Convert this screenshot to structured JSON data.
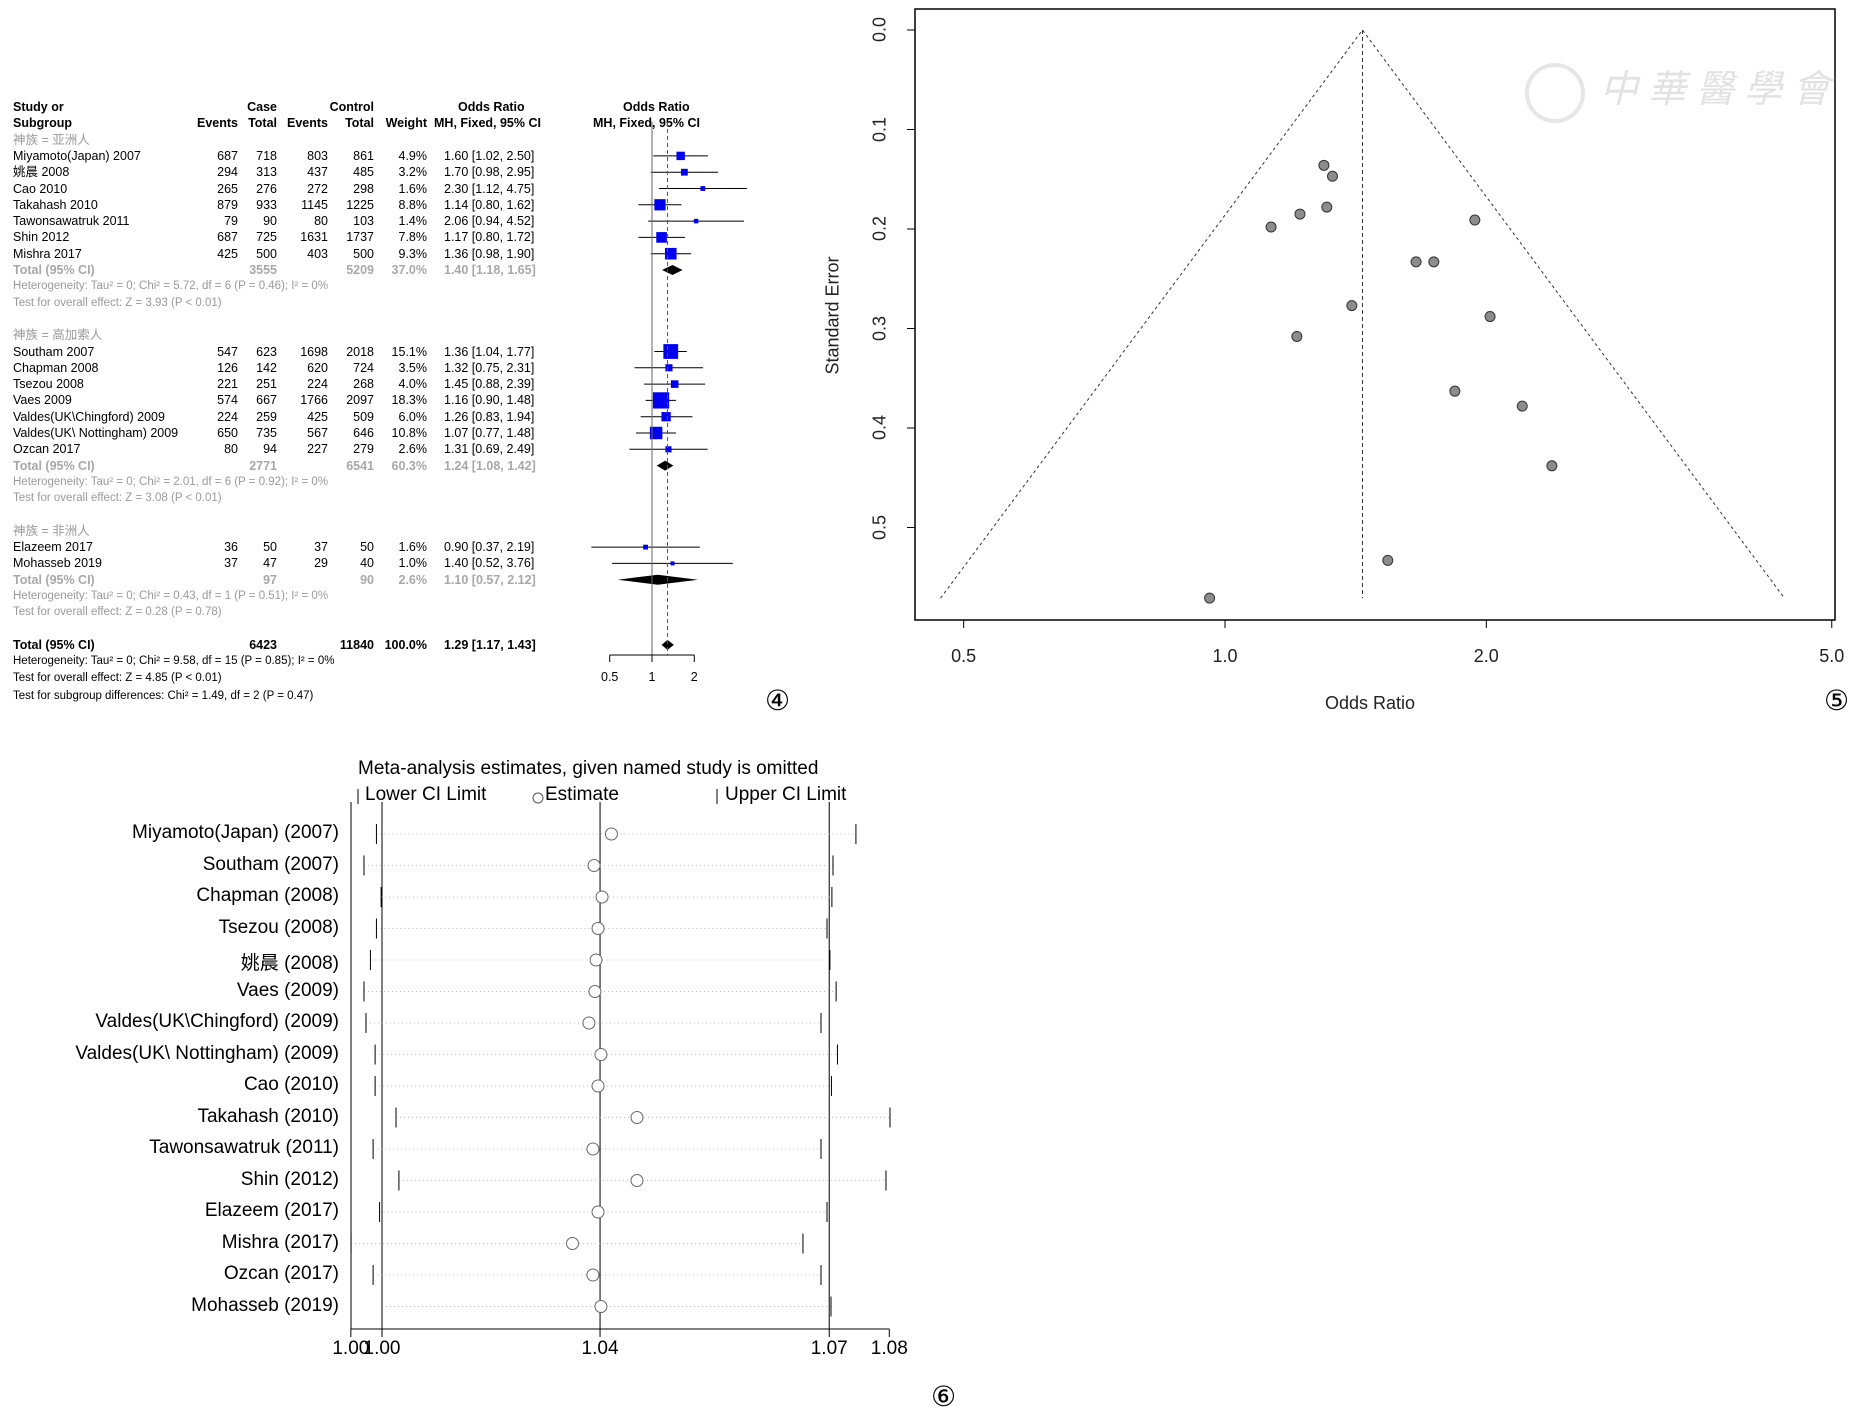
{
  "panels": {
    "p4": "④",
    "p5": "⑤",
    "p6": "⑥"
  },
  "chart_data": [
    {
      "type": "forest",
      "header": {
        "study_line1": "Study or",
        "study_line2": "Subgroup",
        "case": "Case",
        "control": "Control",
        "events": "Events",
        "total": "Total",
        "events2": "Events",
        "total2": "Total",
        "weight": "Weight",
        "or_line1": "Odds Ratio",
        "or_line2": "MH, Fixed, 95% CI",
        "plot_line1": "Odds Ratio",
        "plot_line2": "MH, Fixed, 95% CI"
      },
      "x_ticks": [
        {
          "value": 0.5,
          "label": "0.5"
        },
        {
          "value": 1,
          "label": "1"
        },
        {
          "value": 2,
          "label": "2"
        }
      ],
      "groups": [
        {
          "label": "神族 = 亚洲人",
          "studies": [
            {
              "name": "Miyamoto(Japan) 2007",
              "e1": "687",
              "n1": "718",
              "e2": "803",
              "n2": "861",
              "weight": "4.9%",
              "w": 4.9,
              "or_text": "1.60 [1.02, 2.50]",
              "or": 1.6,
              "lo": 1.02,
              "hi": 2.5
            },
            {
              "name": "姚晨 2008",
              "e1": "294",
              "n1": "313",
              "e2": "437",
              "n2": "485",
              "weight": "3.2%",
              "w": 3.2,
              "or_text": "1.70 [0.98, 2.95]",
              "or": 1.7,
              "lo": 0.98,
              "hi": 2.95
            },
            {
              "name": "Cao 2010",
              "e1": "265",
              "n1": "276",
              "e2": "272",
              "n2": "298",
              "weight": "1.6%",
              "w": 1.6,
              "or_text": "2.30 [1.12, 4.75]",
              "or": 2.3,
              "lo": 1.12,
              "hi": 4.75
            },
            {
              "name": "Takahash 2010",
              "e1": "879",
              "n1": "933",
              "e2": "1145",
              "n2": "1225",
              "weight": "8.8%",
              "w": 8.8,
              "or_text": "1.14 [0.80, 1.62]",
              "or": 1.14,
              "lo": 0.8,
              "hi": 1.62
            },
            {
              "name": "Tawonsawatruk 2011",
              "e1": "79",
              "n1": "90",
              "e2": "80",
              "n2": "103",
              "weight": "1.4%",
              "w": 1.4,
              "or_text": "2.06 [0.94, 4.52]",
              "or": 2.06,
              "lo": 0.94,
              "hi": 4.52
            },
            {
              "name": "Shin 2012",
              "e1": "687",
              "n1": "725",
              "e2": "1631",
              "n2": "1737",
              "weight": "7.8%",
              "w": 7.8,
              "or_text": "1.17 [0.80, 1.72]",
              "or": 1.17,
              "lo": 0.8,
              "hi": 1.72
            },
            {
              "name": "Mishra 2017",
              "e1": "425",
              "n1": "500",
              "e2": "403",
              "n2": "500",
              "weight": "9.3%",
              "w": 9.3,
              "or_text": "1.36 [0.98, 1.90]",
              "or": 1.36,
              "lo": 0.98,
              "hi": 1.9
            }
          ],
          "total": {
            "label": "Total (95% CI)",
            "n1": "3555",
            "n2": "5209",
            "weight": "37.0%",
            "or_text": "1.40 [1.18, 1.65]",
            "or": 1.4,
            "lo": 1.18,
            "hi": 1.65
          },
          "heterogeneity": "Heterogeneity: Tau² = 0; Chi² = 5.72, df = 6 (P = 0.46); I² = 0%",
          "overall_test": "Test for overall effect: Z = 3.93 (P < 0.01)"
        },
        {
          "label": "神族 = 高加索人",
          "studies": [
            {
              "name": "Southam 2007",
              "e1": "547",
              "n1": "623",
              "e2": "1698",
              "n2": "2018",
              "weight": "15.1%",
              "w": 15.1,
              "or_text": "1.36 [1.04, 1.77]",
              "or": 1.36,
              "lo": 1.04,
              "hi": 1.77
            },
            {
              "name": "Chapman 2008",
              "e1": "126",
              "n1": "142",
              "e2": "620",
              "n2": "724",
              "weight": "3.5%",
              "w": 3.5,
              "or_text": "1.32 [0.75, 2.31]",
              "or": 1.32,
              "lo": 0.75,
              "hi": 2.31
            },
            {
              "name": "Tsezou 2008",
              "e1": "221",
              "n1": "251",
              "e2": "224",
              "n2": "268",
              "weight": "4.0%",
              "w": 4.0,
              "or_text": "1.45 [0.88, 2.39]",
              "or": 1.45,
              "lo": 0.88,
              "hi": 2.39
            },
            {
              "name": "Vaes 2009",
              "e1": "574",
              "n1": "667",
              "e2": "1766",
              "n2": "2097",
              "weight": "18.3%",
              "w": 18.3,
              "or_text": "1.16 [0.90, 1.48]",
              "or": 1.16,
              "lo": 0.9,
              "hi": 1.48
            },
            {
              "name": "Valdes(UK\\Chingford) 2009",
              "e1": "224",
              "n1": "259",
              "e2": "425",
              "n2": "509",
              "weight": "6.0%",
              "w": 6.0,
              "or_text": "1.26 [0.83, 1.94]",
              "or": 1.26,
              "lo": 0.83,
              "hi": 1.94
            },
            {
              "name": "Valdes(UK\\ Nottingham) 2009",
              "e1": "650",
              "n1": "735",
              "e2": "567",
              "n2": "646",
              "weight": "10.8%",
              "w": 10.8,
              "or_text": "1.07 [0.77, 1.48]",
              "or": 1.07,
              "lo": 0.77,
              "hi": 1.48
            },
            {
              "name": " Ozcan 2017",
              "e1": "80",
              "n1": "94",
              "e2": "227",
              "n2": "279",
              "weight": "2.6%",
              "w": 2.6,
              "or_text": "1.31 [0.69, 2.49]",
              "or": 1.31,
              "lo": 0.69,
              "hi": 2.49
            }
          ],
          "total": {
            "label": "Total (95% CI)",
            "n1": "2771",
            "n2": "6541",
            "weight": "60.3%",
            "or_text": "1.24 [1.08, 1.42]",
            "or": 1.24,
            "lo": 1.08,
            "hi": 1.42
          },
          "heterogeneity": "Heterogeneity: Tau² = 0; Chi² = 2.01, df = 6 (P = 0.92); I² = 0%",
          "overall_test": "Test for overall effect: Z = 3.08 (P < 0.01)"
        },
        {
          "label": "神族 = 非洲人",
          "studies": [
            {
              "name": " Elazeem 2017",
              "e1": "36",
              "n1": "50",
              "e2": "37",
              "n2": "50",
              "weight": "1.6%",
              "w": 1.6,
              "or_text": "0.90 [0.37, 2.19]",
              "or": 0.9,
              "lo": 0.37,
              "hi": 2.19
            },
            {
              "name": "Mohasseb 2019",
              "e1": "37",
              "n1": "47",
              "e2": "29",
              "n2": "40",
              "weight": "1.0%",
              "w": 1.0,
              "or_text": "1.40 [0.52, 3.76]",
              "or": 1.4,
              "lo": 0.52,
              "hi": 3.76
            }
          ],
          "total": {
            "label": "Total (95% CI)",
            "n1": "97",
            "n2": "90",
            "weight": "2.6%",
            "or_text": "1.10 [0.57, 2.12]",
            "or": 1.1,
            "lo": 0.57,
            "hi": 2.12
          },
          "heterogeneity": "Heterogeneity: Tau² = 0; Chi² = 0.43, df = 1 (P = 0.51); I² = 0%",
          "overall_test": "Test for overall effect: Z = 0.28 (P = 0.78)"
        }
      ],
      "overall": {
        "label": "Total (95% CI)",
        "n1": "6423",
        "n2": "11840",
        "weight": "100.0%",
        "or_text": "1.29 [1.17, 1.43]",
        "or": 1.29,
        "lo": 1.17,
        "hi": 1.43
      },
      "overall_heterogeneity": "Heterogeneity: Tau² = 0; Chi² = 9.58, df = 15 (P = 0.85); I² = 0%",
      "overall_test": "Test for overall effect: Z = 4.85 (P < 0.01)",
      "subgroup_test": "Test for subgroup differences: Chi² = 1.49, df = 2 (P = 0.47)",
      "colors": {
        "square": "#0000ee",
        "diamond": "#000000"
      }
    },
    {
      "type": "scatter",
      "title": "",
      "xlabel": "Odds Ratio",
      "ylabel": "Standard Error",
      "x_scale": "log",
      "x_ticks": [
        {
          "value": 0.5,
          "label": "0.5"
        },
        {
          "value": 1.0,
          "label": "1.0"
        },
        {
          "value": 2.0,
          "label": "2.0"
        },
        {
          "value": 5.0,
          "label": "5.0"
        }
      ],
      "y_ticks": [
        {
          "value": 0.0,
          "label": "0.0"
        },
        {
          "value": 0.1,
          "label": "0.1"
        },
        {
          "value": 0.2,
          "label": "0.2"
        },
        {
          "value": 0.3,
          "label": "0.3"
        },
        {
          "value": 0.4,
          "label": "0.4"
        },
        {
          "value": 0.5,
          "label": "0.5"
        }
      ],
      "y_reversed": true,
      "pooled_or": 1.44,
      "funnel_max_se": 0.571,
      "points": [
        {
          "or": 1.3,
          "se": 0.136
        },
        {
          "or": 1.33,
          "se": 0.147
        },
        {
          "or": 1.31,
          "se": 0.178
        },
        {
          "or": 1.22,
          "se": 0.185
        },
        {
          "or": 1.13,
          "se": 0.198
        },
        {
          "or": 1.94,
          "se": 0.191
        },
        {
          "or": 1.66,
          "se": 0.233
        },
        {
          "or": 1.74,
          "se": 0.233
        },
        {
          "or": 1.4,
          "se": 0.277
        },
        {
          "or": 2.02,
          "se": 0.288
        },
        {
          "or": 1.21,
          "se": 0.308
        },
        {
          "or": 1.84,
          "se": 0.363
        },
        {
          "or": 2.2,
          "se": 0.378
        },
        {
          "or": 2.38,
          "se": 0.438
        },
        {
          "or": 1.54,
          "se": 0.533
        },
        {
          "or": 0.96,
          "se": 0.571
        }
      ],
      "watermark": "中華醫學會",
      "colors": {
        "point": "#8c8c8c"
      }
    },
    {
      "type": "sensitivity",
      "title": "Meta-analysis estimates, given named study is omitted",
      "legend": {
        "lower": "Lower CI Limit",
        "estimate": "Estimate",
        "upper": "Upper CI Limit"
      },
      "x_range": [
        0.143,
        0.385
      ],
      "x_ticks": [
        {
          "value": 0.143,
          "label": "1.00"
        },
        {
          "value": 0.157,
          "label": "1.00"
        },
        {
          "value": 0.255,
          "label": "1.04"
        },
        {
          "value": 0.358,
          "label": "1.07"
        },
        {
          "value": 0.385,
          "label": "1.08"
        }
      ],
      "reference_lines": [
        0.157,
        0.255,
        0.358
      ],
      "studies": [
        {
          "name": "Miyamoto(Japan) (2007)",
          "lower": 0.1545,
          "estimate": 0.2601,
          "upper": 0.37
        },
        {
          "name": "Southam (2007)",
          "lower": 0.1489,
          "estimate": 0.2523,
          "upper": 0.3597
        },
        {
          "name": "Chapman (2008)",
          "lower": 0.1566,
          "estimate": 0.2559,
          "upper": 0.3592
        },
        {
          "name": "Tsezou (2008)",
          "lower": 0.1545,
          "estimate": 0.2541,
          "upper": 0.357
        },
        {
          "name": "姚晨 (2008)",
          "lower": 0.1518,
          "estimate": 0.2532,
          "upper": 0.3583
        },
        {
          "name": "Vaes (2009)",
          "lower": 0.1489,
          "estimate": 0.2527,
          "upper": 0.3611
        },
        {
          "name": "Valdes(UK\\Chingford) (2009)",
          "lower": 0.1498,
          "estimate": 0.25,
          "upper": 0.3543
        },
        {
          "name": "Valdes(UK\\ Nottingham) (2009)",
          "lower": 0.1539,
          "estimate": 0.2554,
          "upper": 0.3617
        },
        {
          "name": "Cao (2010)",
          "lower": 0.1539,
          "estimate": 0.2541,
          "upper": 0.359
        },
        {
          "name": "Takahash (2010)",
          "lower": 0.1633,
          "estimate": 0.2716,
          "upper": 0.3853
        },
        {
          "name": "Tawonsawatruk (2011)",
          "lower": 0.153,
          "estimate": 0.2518,
          "upper": 0.3543
        },
        {
          "name": "Shin (2012)",
          "lower": 0.1646,
          "estimate": 0.2716,
          "upper": 0.3835
        },
        {
          "name": "Elazeem (2017)",
          "lower": 0.1559,
          "estimate": 0.2541,
          "upper": 0.357
        },
        {
          "name": "Mishra (2017)",
          "lower": 0.1431,
          "estimate": 0.2426,
          "upper": 0.3462
        },
        {
          "name": "Ozcan (2017)",
          "lower": 0.153,
          "estimate": 0.2518,
          "upper": 0.3543
        },
        {
          "name": "Mohasseb (2019)",
          "lower": 0.157,
          "estimate": 0.2554,
          "upper": 0.3588
        }
      ]
    }
  ]
}
